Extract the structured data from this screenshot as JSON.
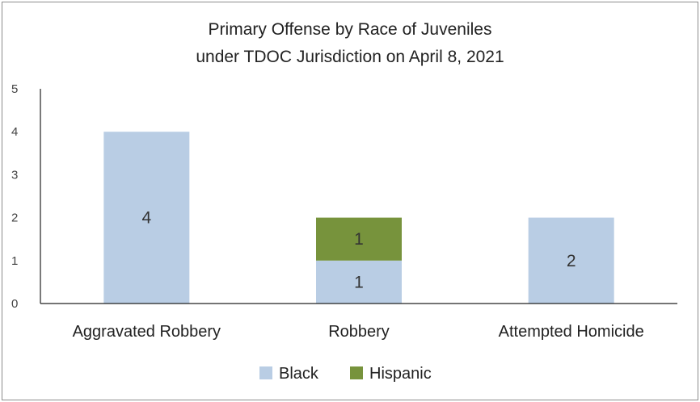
{
  "chart_data": {
    "type": "bar",
    "stacked": true,
    "title_lines": [
      "Primary Offense by Race of Juveniles",
      "under TDOC Jurisdiction on April 8, 2021"
    ],
    "categories": [
      "Aggravated Robbery",
      "Robbery",
      "Attempted Homicide"
    ],
    "series": [
      {
        "name": "Black",
        "values": [
          4,
          1,
          2
        ],
        "color": "#b9cde4"
      },
      {
        "name": "Hispanic",
        "values": [
          0,
          1,
          0
        ],
        "color": "#77933c"
      }
    ],
    "data_labels": [
      [
        "4",
        "1",
        "2"
      ],
      [
        null,
        "1",
        null
      ]
    ],
    "yticks": [
      "0",
      "1",
      "2",
      "3",
      "4",
      "5"
    ],
    "ylim": [
      0,
      5
    ],
    "grid": false,
    "legend": "bottom"
  }
}
